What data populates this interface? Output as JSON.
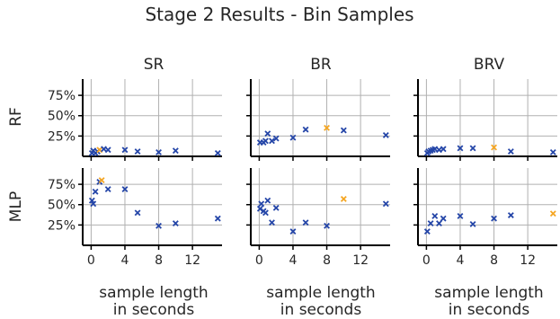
{
  "chart_data": {
    "type": "scatter",
    "title": "Stage 2 Results - Bin Samples",
    "row_labels": [
      "RF",
      "MLP"
    ],
    "column_titles": [
      "SR",
      "BR",
      "BRV"
    ],
    "xlabel_line1": "sample length",
    "xlabel_line2": "in seconds",
    "xlim": [
      -1,
      15.5
    ],
    "xticks": [
      0,
      4,
      8,
      12
    ],
    "xtick_labels": [
      "0",
      "4",
      "8",
      "12"
    ],
    "ylim": [
      0,
      0.95
    ],
    "yticks": [
      0.25,
      0.5,
      0.75
    ],
    "ytick_labels": [
      "25%",
      "50%",
      "75%"
    ],
    "grid": true,
    "colors": {
      "points": "#2546a8",
      "highlight": "#f5a623",
      "axis": "#000000",
      "grid": "#b0b0b0"
    },
    "panels": [
      {
        "row": "RF",
        "column": "SR",
        "points": [
          {
            "x": 0.1,
            "y": 0.04
          },
          {
            "x": 0.25,
            "y": 0.07
          },
          {
            "x": 0.5,
            "y": 0.04
          },
          {
            "x": 0.75,
            "y": 0.06
          },
          {
            "x": 1.0,
            "y": 0.08,
            "highlight": true
          },
          {
            "x": 1.5,
            "y": 0.09
          },
          {
            "x": 2.0,
            "y": 0.08
          },
          {
            "x": 4.0,
            "y": 0.08
          },
          {
            "x": 5.5,
            "y": 0.06
          },
          {
            "x": 8.0,
            "y": 0.05
          },
          {
            "x": 10.0,
            "y": 0.07
          },
          {
            "x": 15.0,
            "y": 0.04
          }
        ]
      },
      {
        "row": "RF",
        "column": "BR",
        "points": [
          {
            "x": 0.1,
            "y": 0.17
          },
          {
            "x": 0.5,
            "y": 0.17
          },
          {
            "x": 0.75,
            "y": 0.19
          },
          {
            "x": 1.0,
            "y": 0.28
          },
          {
            "x": 1.5,
            "y": 0.19
          },
          {
            "x": 2.0,
            "y": 0.22
          },
          {
            "x": 4.0,
            "y": 0.23
          },
          {
            "x": 5.5,
            "y": 0.33
          },
          {
            "x": 8.0,
            "y": 0.35,
            "highlight": true
          },
          {
            "x": 10.0,
            "y": 0.32
          },
          {
            "x": 15.0,
            "y": 0.26
          }
        ]
      },
      {
        "row": "RF",
        "column": "BRV",
        "points": [
          {
            "x": 0.1,
            "y": 0.04
          },
          {
            "x": 0.25,
            "y": 0.06
          },
          {
            "x": 0.5,
            "y": 0.07
          },
          {
            "x": 0.75,
            "y": 0.08
          },
          {
            "x": 1.0,
            "y": 0.09
          },
          {
            "x": 1.5,
            "y": 0.08
          },
          {
            "x": 2.0,
            "y": 0.09
          },
          {
            "x": 4.0,
            "y": 0.1
          },
          {
            "x": 5.5,
            "y": 0.1
          },
          {
            "x": 8.0,
            "y": 0.11,
            "highlight": true
          },
          {
            "x": 10.0,
            "y": 0.06
          },
          {
            "x": 15.0,
            "y": 0.05
          }
        ]
      },
      {
        "row": "MLP",
        "column": "SR",
        "points": [
          {
            "x": 0.1,
            "y": 0.55
          },
          {
            "x": 0.25,
            "y": 0.51
          },
          {
            "x": 0.5,
            "y": 0.66
          },
          {
            "x": 1.0,
            "y": 0.78
          },
          {
            "x": 1.25,
            "y": 0.8,
            "highlight": true
          },
          {
            "x": 2.0,
            "y": 0.69
          },
          {
            "x": 4.0,
            "y": 0.69
          },
          {
            "x": 5.5,
            "y": 0.4
          },
          {
            "x": 8.0,
            "y": 0.24
          },
          {
            "x": 10.0,
            "y": 0.27
          },
          {
            "x": 15.0,
            "y": 0.33
          }
        ]
      },
      {
        "row": "MLP",
        "column": "BR",
        "points": [
          {
            "x": 0.1,
            "y": 0.45
          },
          {
            "x": 0.25,
            "y": 0.51
          },
          {
            "x": 0.5,
            "y": 0.42
          },
          {
            "x": 0.75,
            "y": 0.4
          },
          {
            "x": 1.0,
            "y": 0.55
          },
          {
            "x": 1.5,
            "y": 0.28
          },
          {
            "x": 2.0,
            "y": 0.46
          },
          {
            "x": 4.0,
            "y": 0.17
          },
          {
            "x": 5.5,
            "y": 0.28
          },
          {
            "x": 8.0,
            "y": 0.24
          },
          {
            "x": 10.0,
            "y": 0.57,
            "highlight": true
          },
          {
            "x": 15.0,
            "y": 0.51
          }
        ]
      },
      {
        "row": "MLP",
        "column": "BRV",
        "points": [
          {
            "x": 0.1,
            "y": 0.17
          },
          {
            "x": 0.5,
            "y": 0.27
          },
          {
            "x": 1.0,
            "y": 0.36
          },
          {
            "x": 1.5,
            "y": 0.27
          },
          {
            "x": 2.0,
            "y": 0.33
          },
          {
            "x": 4.0,
            "y": 0.36
          },
          {
            "x": 5.5,
            "y": 0.26
          },
          {
            "x": 8.0,
            "y": 0.33
          },
          {
            "x": 10.0,
            "y": 0.37
          },
          {
            "x": 15.0,
            "y": 0.39,
            "highlight": true
          }
        ]
      }
    ]
  }
}
